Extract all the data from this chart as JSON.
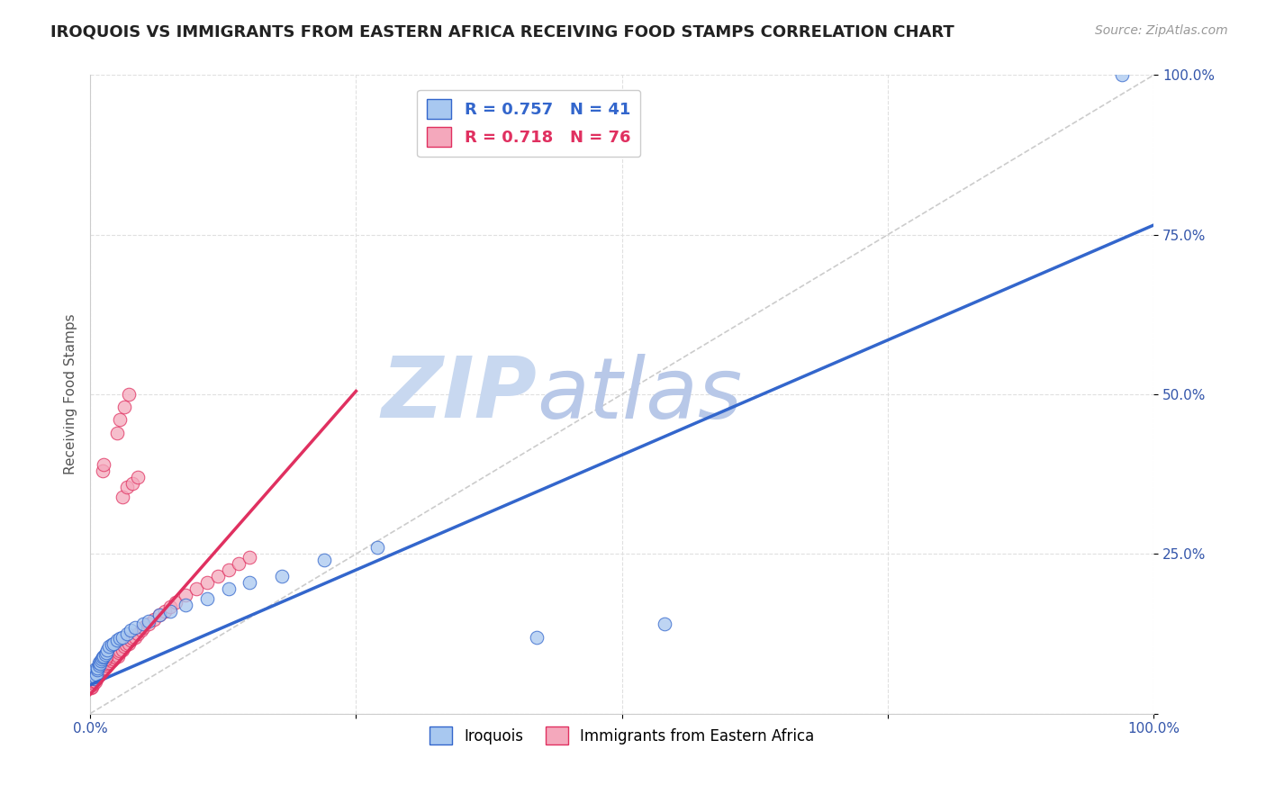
{
  "title": "IROQUOIS VS IMMIGRANTS FROM EASTERN AFRICA RECEIVING FOOD STAMPS CORRELATION CHART",
  "source": "Source: ZipAtlas.com",
  "ylabel": "Receiving Food Stamps",
  "legend_label1": "Iroquois",
  "legend_label2": "Immigrants from Eastern Africa",
  "r1": 0.757,
  "n1": 41,
  "r2": 0.718,
  "n2": 76,
  "color_iroquois": "#a8c8f0",
  "color_eastern_africa": "#f4a8bc",
  "color_line_iroquois": "#3366cc",
  "color_line_eastern_africa": "#e03060",
  "color_reference_line": "#cccccc",
  "watermark_zip": "#c8d8f0",
  "watermark_atlas": "#b8c8e8",
  "iroquois_x": [
    0.002,
    0.003,
    0.004,
    0.005,
    0.005,
    0.006,
    0.007,
    0.007,
    0.008,
    0.008,
    0.009,
    0.01,
    0.011,
    0.012,
    0.013,
    0.014,
    0.015,
    0.016,
    0.018,
    0.02,
    0.022,
    0.025,
    0.028,
    0.03,
    0.035,
    0.038,
    0.042,
    0.05,
    0.055,
    0.065,
    0.075,
    0.09,
    0.11,
    0.13,
    0.15,
    0.18,
    0.22,
    0.27,
    0.42,
    0.54,
    0.97
  ],
  "iroquois_y": [
    0.06,
    0.065,
    0.055,
    0.07,
    0.058,
    0.062,
    0.068,
    0.072,
    0.075,
    0.08,
    0.078,
    0.082,
    0.085,
    0.088,
    0.09,
    0.092,
    0.095,
    0.1,
    0.105,
    0.108,
    0.11,
    0.115,
    0.118,
    0.12,
    0.125,
    0.13,
    0.135,
    0.14,
    0.145,
    0.155,
    0.16,
    0.17,
    0.18,
    0.195,
    0.205,
    0.215,
    0.24,
    0.26,
    0.12,
    0.14,
    1.0
  ],
  "eastern_africa_x": [
    0.001,
    0.002,
    0.002,
    0.003,
    0.003,
    0.004,
    0.004,
    0.005,
    0.005,
    0.005,
    0.006,
    0.006,
    0.007,
    0.007,
    0.008,
    0.008,
    0.009,
    0.009,
    0.01,
    0.01,
    0.011,
    0.011,
    0.012,
    0.012,
    0.013,
    0.014,
    0.015,
    0.015,
    0.016,
    0.017,
    0.018,
    0.019,
    0.02,
    0.021,
    0.022,
    0.023,
    0.024,
    0.025,
    0.026,
    0.027,
    0.028,
    0.03,
    0.032,
    0.034,
    0.036,
    0.038,
    0.04,
    0.042,
    0.045,
    0.048,
    0.05,
    0.055,
    0.06,
    0.065,
    0.07,
    0.075,
    0.08,
    0.09,
    0.1,
    0.11,
    0.12,
    0.13,
    0.14,
    0.15,
    0.03,
    0.035,
    0.04,
    0.045,
    0.025,
    0.028,
    0.032,
    0.036,
    0.012,
    0.013,
    0.014,
    0.015
  ],
  "eastern_africa_y": [
    0.04,
    0.042,
    0.045,
    0.048,
    0.05,
    0.052,
    0.055,
    0.05,
    0.055,
    0.058,
    0.055,
    0.06,
    0.058,
    0.062,
    0.06,
    0.065,
    0.062,
    0.068,
    0.065,
    0.07,
    0.068,
    0.072,
    0.07,
    0.075,
    0.072,
    0.078,
    0.075,
    0.08,
    0.078,
    0.082,
    0.08,
    0.085,
    0.082,
    0.088,
    0.085,
    0.09,
    0.088,
    0.092,
    0.09,
    0.095,
    0.098,
    0.1,
    0.105,
    0.108,
    0.11,
    0.115,
    0.118,
    0.12,
    0.125,
    0.13,
    0.135,
    0.14,
    0.148,
    0.155,
    0.16,
    0.168,
    0.175,
    0.185,
    0.195,
    0.205,
    0.215,
    0.225,
    0.235,
    0.245,
    0.34,
    0.355,
    0.36,
    0.37,
    0.44,
    0.46,
    0.48,
    0.5,
    0.38,
    0.39,
    0.085,
    0.09
  ],
  "xlim": [
    0.0,
    1.0
  ],
  "ylim": [
    0.0,
    1.0
  ],
  "grid_color": "#e0e0e0",
  "background_color": "#ffffff",
  "title_fontsize": 13,
  "source_fontsize": 10,
  "axis_label_fontsize": 11
}
